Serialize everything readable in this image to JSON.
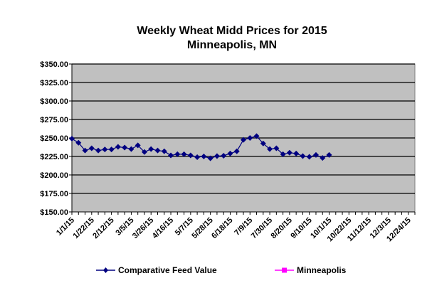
{
  "chart_data": {
    "type": "line",
    "title": "Weekly Wheat Midd Prices for 2015",
    "subtitle": "Minneapolis, MN",
    "xlabel": "",
    "ylabel": "",
    "ylim": [
      150,
      350
    ],
    "y_ticks": [
      "$150.00",
      "$175.00",
      "$200.00",
      "$225.00",
      "$250.00",
      "$275.00",
      "$300.00",
      "$325.00",
      "$350.00"
    ],
    "y_tick_values": [
      150,
      175,
      200,
      225,
      250,
      275,
      300,
      325,
      350
    ],
    "x_tick_labels": [
      "1/1/15",
      "1/22/15",
      "2/12/15",
      "3/5/15",
      "3/26/15",
      "4/16/15",
      "5/7/15",
      "5/28/15",
      "6/18/15",
      "7/9/15",
      "7/30/15",
      "8/20/15",
      "9/10/15",
      "10/1/15",
      "10/22/15",
      "11/12/15",
      "12/3/15",
      "12/24/15"
    ],
    "x_label_every_weeks": 3,
    "total_weeks": 53,
    "grid": true,
    "plot_background": "#c0c0c0",
    "legend_position": "bottom",
    "series": [
      {
        "name": "Comparative Feed Value",
        "color": "#000080",
        "marker": "diamond",
        "values": [
          249,
          243.5,
          233,
          236,
          233,
          234.5,
          234.5,
          238,
          237,
          235,
          240,
          231,
          235,
          233,
          232,
          226.5,
          228,
          228,
          226.5,
          224,
          225,
          222.5,
          225.5,
          226,
          229,
          232,
          247.5,
          250,
          252.5,
          242.5,
          235,
          236,
          228,
          230,
          229,
          225.5,
          224.5,
          227,
          223,
          227
        ]
      },
      {
        "name": "Minneapolis",
        "color": "#ff00ff",
        "marker": "square",
        "values": []
      }
    ]
  }
}
